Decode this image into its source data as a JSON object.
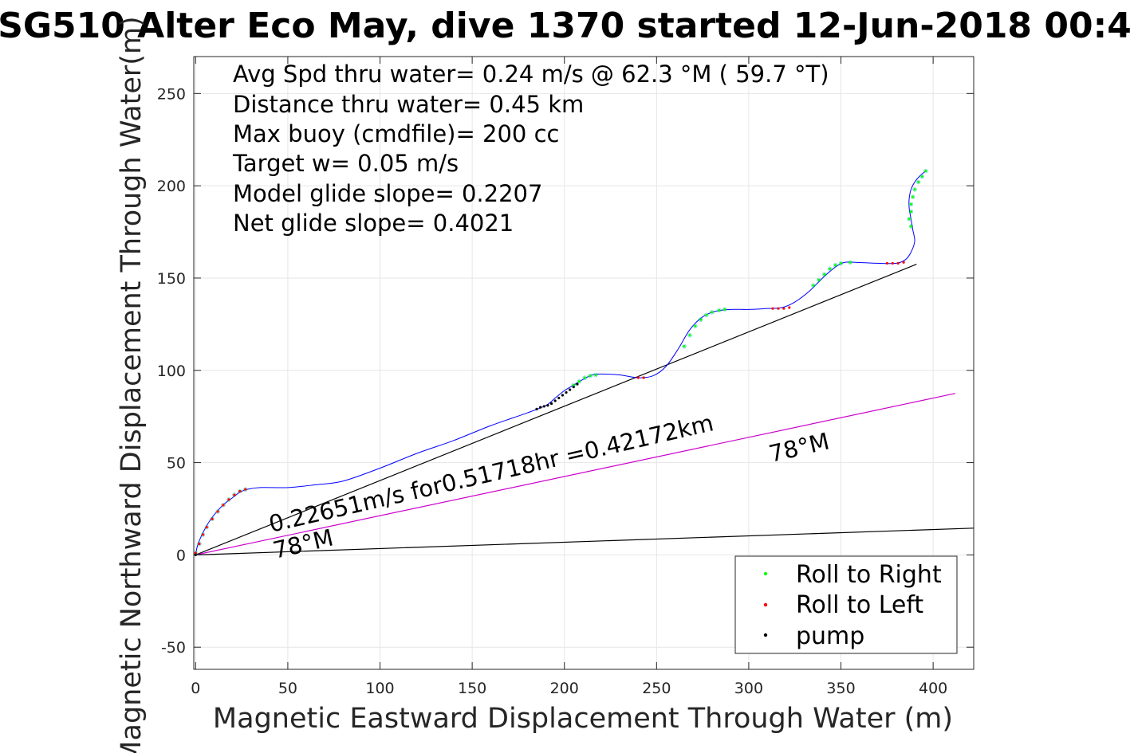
{
  "chart_data": {
    "type": "line",
    "title": "SG510 Alter Eco May, dive 1370 started 12-Jun-2018 00:4",
    "xlabel": "Magnetic Eastward Displacement Through Water (m)",
    "ylabel": "Magnetic Northward Displacement Through Water(m)",
    "xlim": [
      -1,
      422
    ],
    "ylim": [
      -62,
      270
    ],
    "xticks": [
      0,
      50,
      100,
      150,
      200,
      250,
      300,
      350,
      400
    ],
    "yticks": [
      -50,
      0,
      50,
      100,
      150,
      200,
      250
    ],
    "grid": true,
    "legend_position": "bottom-right",
    "info_lines": [
      "Avg Spd thru water=  0.24 m/s @  62.3 °M ( 59.7 °T)",
      "Distance thru water=  0.45 km",
      "Max buoy (cmdfile)= 200 cc",
      "Target w= 0.05 m/s",
      "Model glide slope= 0.2207",
      "Net glide slope= 0.4021"
    ],
    "annotations": [
      {
        "text": "0.22651m/s for0.51718hr =0.42172km",
        "x": 40,
        "y": 10,
        "rotation_deg": -13
      },
      {
        "text": "78°M",
        "x": 42,
        "y": 1,
        "rotation_deg": -13
      },
      {
        "text": "78°M",
        "x": 313,
        "y": 53,
        "rotation_deg": -13
      }
    ],
    "legend": [
      {
        "label": "Roll to Right",
        "color": "#00ff00"
      },
      {
        "label": "Roll to Left",
        "color": "#ff0000"
      },
      {
        "label": "pump",
        "color": "#000000"
      }
    ],
    "series": [
      {
        "name": "track",
        "kind": "line",
        "color": "#0000ff",
        "x": [
          0,
          1,
          3,
          5,
          8,
          12,
          16,
          20,
          24,
          28,
          35,
          50,
          65,
          80,
          100,
          120,
          140,
          160,
          180,
          190,
          195,
          200,
          205,
          210,
          215,
          220,
          230,
          240,
          248,
          255,
          262,
          268,
          275,
          282,
          290,
          300,
          310,
          318,
          325,
          333,
          340,
          347,
          352,
          358,
          370,
          380,
          385,
          388,
          390,
          389,
          388,
          387,
          387,
          388,
          390,
          393,
          396
        ],
        "y": [
          0,
          5,
          10,
          14,
          19,
          24,
          28,
          31,
          34,
          35.5,
          36.5,
          36.5,
          38,
          40,
          47,
          55,
          62,
          70,
          77,
          81,
          85,
          89,
          92,
          95,
          97.5,
          98,
          97.5,
          96,
          97,
          102,
          112,
          122,
          129,
          132,
          133,
          133,
          133.5,
          134,
          137,
          143,
          150,
          156,
          158.5,
          158.5,
          158,
          158,
          160,
          164,
          170,
          176,
          182,
          188,
          193,
          198,
          202,
          205.5,
          208
        ]
      },
      {
        "name": "Roll to Right",
        "kind": "points",
        "color": "#00ff00",
        "x": [
          0,
          2,
          4,
          6,
          9,
          12,
          15,
          18,
          21,
          24,
          27,
          205,
          208,
          211,
          214,
          217,
          265,
          268,
          271,
          274,
          277,
          280,
          284,
          287,
          335,
          338,
          341,
          344,
          347,
          350,
          355,
          387,
          388,
          388,
          388,
          389,
          390,
          392,
          394,
          396
        ],
        "y": [
          1,
          6,
          11,
          15,
          19.5,
          23.5,
          27,
          30,
          32.5,
          34.5,
          35.5,
          92,
          94,
          96,
          97,
          97.5,
          113,
          119,
          124,
          127.5,
          130,
          131.5,
          132.5,
          133,
          146,
          149,
          152,
          155,
          157,
          158,
          158.5,
          182,
          178,
          186,
          190,
          194,
          198,
          202,
          205,
          208
        ]
      },
      {
        "name": "Roll to Left",
        "kind": "points",
        "color": "#ff0000",
        "x": [
          0,
          2,
          4,
          6,
          9,
          12,
          15,
          18,
          21,
          24,
          27,
          240,
          243,
          313,
          316,
          319,
          322,
          375,
          378,
          381,
          384
        ],
        "y": [
          1,
          6,
          11,
          15,
          19.5,
          23.5,
          27,
          30,
          32.5,
          34.5,
          35.5,
          96,
          96,
          133.5,
          133.5,
          133.5,
          134,
          158,
          158,
          158,
          158.5
        ]
      },
      {
        "name": "pump",
        "kind": "points",
        "color": "#000000",
        "x": [
          0,
          185,
          187,
          189,
          191,
          193,
          195,
          197,
          199,
          201,
          203,
          205,
          207
        ],
        "y": [
          0,
          79,
          80,
          80.5,
          81,
          82,
          83.5,
          85,
          86.5,
          88,
          89.5,
          91,
          92.5
        ]
      },
      {
        "name": "net displacement",
        "kind": "reference",
        "color": "#000000",
        "x": [
          0,
          391
        ],
        "y": [
          0,
          157.5
        ]
      },
      {
        "name": "78 deg M heading",
        "kind": "reference",
        "color": "#cc00cc",
        "x": [
          0,
          412
        ],
        "y": [
          0,
          87.5
        ]
      },
      {
        "name": "78 deg M shallow",
        "kind": "reference",
        "color": "#000000",
        "x": [
          0,
          422
        ],
        "y": [
          0,
          14.5
        ]
      }
    ]
  }
}
